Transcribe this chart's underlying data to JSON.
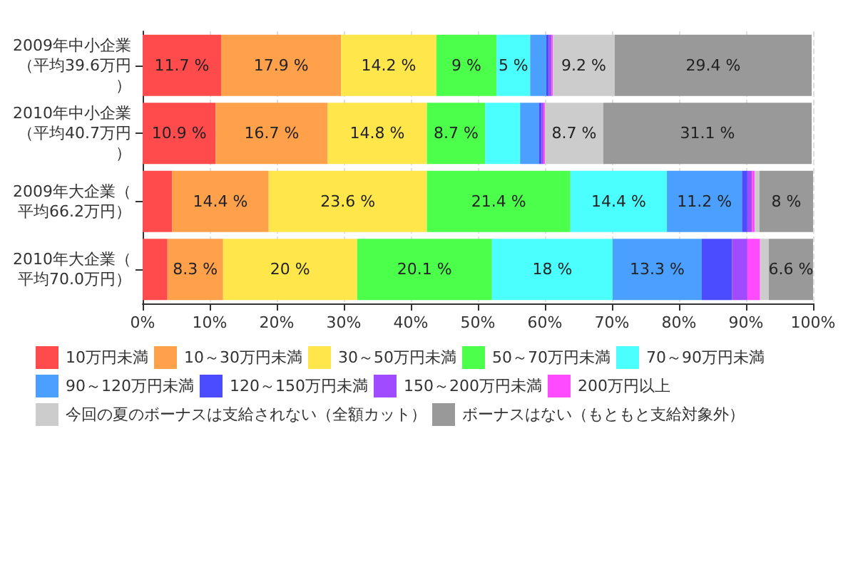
{
  "chart_data": {
    "type": "bar",
    "orientation": "horizontal",
    "stacked": true,
    "categories": [
      "2009年中小企業（平均39.6万円）",
      "2010年中小企業（平均40.7万円）",
      "2009年大企業（平均66.2万円）",
      "2010年大企業（平均70.0万円）"
    ],
    "xlim": [
      0,
      100
    ],
    "xticks": [
      {
        "value": 0,
        "label": "0%"
      },
      {
        "value": 10,
        "label": "10%"
      },
      {
        "value": 20,
        "label": "20%"
      },
      {
        "value": 30,
        "label": "30%"
      },
      {
        "value": 40,
        "label": "40%"
      },
      {
        "value": 50,
        "label": "50%"
      },
      {
        "value": 60,
        "label": "60%"
      },
      {
        "value": 70,
        "label": "70%"
      },
      {
        "value": 80,
        "label": "80%"
      },
      {
        "value": 90,
        "label": "90%"
      },
      {
        "value": 100,
        "label": "100%"
      }
    ],
    "grid": "x",
    "legend": "bottom",
    "series": [
      {
        "name": "10万円未満",
        "color": "#ff4b4b",
        "values": [
          11.7,
          10.9,
          4.4,
          3.7
        ],
        "value_labels": [
          "11.7 %",
          "10.9 %",
          null,
          null
        ]
      },
      {
        "name": "10～30万円未満",
        "color": "#ffa04b",
        "values": [
          17.9,
          16.7,
          14.4,
          8.3
        ],
        "value_labels": [
          "17.9 %",
          "16.7 %",
          "14.4 %",
          "8.3 %"
        ]
      },
      {
        "name": "30～50万円未満",
        "color": "#ffe64b",
        "values": [
          14.2,
          14.8,
          23.6,
          20
        ],
        "value_labels": [
          "14.2 %",
          "14.8 %",
          "23.6 %",
          "20 %"
        ]
      },
      {
        "name": "50～70万円未満",
        "color": "#4bff4b",
        "values": [
          9,
          8.7,
          21.4,
          20.1
        ],
        "value_labels": [
          "9 %",
          "8.7 %",
          "21.4 %",
          "20.1 %"
        ]
      },
      {
        "name": "70～90万円未満",
        "color": "#4bffff",
        "values": [
          5,
          5.2,
          14.4,
          18
        ],
        "value_labels": [
          "5 %",
          null,
          "14.4 %",
          "18 %"
        ]
      },
      {
        "name": "90～120万円未満",
        "color": "#4ba0ff",
        "values": [
          2.4,
          2.8,
          11.2,
          13.3
        ],
        "value_labels": [
          null,
          null,
          "11.2 %",
          "13.3 %"
        ]
      },
      {
        "name": "120～150万円未満",
        "color": "#4b4bff",
        "values": [
          0.4,
          0.4,
          0.8,
          4.5
        ],
        "value_labels": [
          null,
          null,
          null,
          null
        ]
      },
      {
        "name": "150～200万円未満",
        "color": "#a04bff",
        "values": [
          0.4,
          0.3,
          0.7,
          2.3
        ],
        "value_labels": [
          null,
          null,
          null,
          null
        ]
      },
      {
        "name": "200万円以上",
        "color": "#ff4bff",
        "values": [
          0.2,
          0.2,
          0.4,
          1.9
        ],
        "value_labels": [
          null,
          null,
          null,
          null
        ]
      },
      {
        "name": "今回の夏のボーナスは支給されない（全額カット）",
        "color": "#cccccc",
        "values": [
          9.2,
          8.7,
          0.7,
          1.3
        ],
        "value_labels": [
          "9.2 %",
          "8.7 %",
          null,
          null
        ]
      },
      {
        "name": "ボーナスはない（もともと支給対象外）",
        "color": "#999999",
        "values": [
          29.4,
          31.1,
          8,
          6.6
        ],
        "value_labels": [
          "29.4 %",
          "31.1 %",
          "8 %",
          "6.6 %"
        ]
      }
    ]
  }
}
